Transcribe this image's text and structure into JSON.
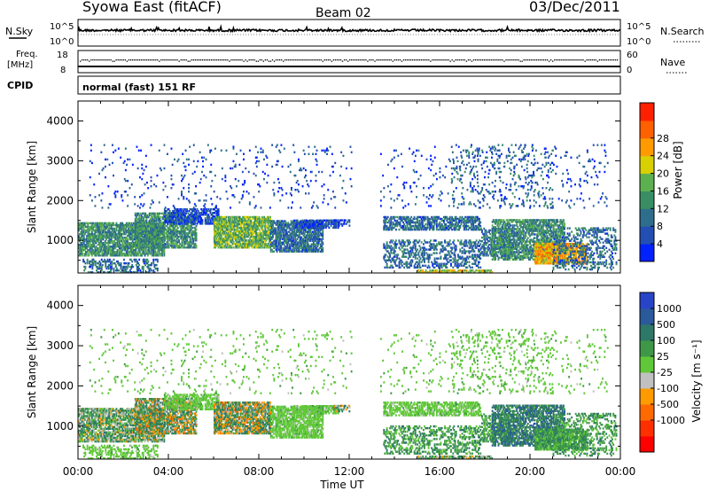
{
  "header": {
    "station": "Syowa East (fitACF)",
    "beam": "Beam 02",
    "date": "03/Dec/2011"
  },
  "noise_panel": {
    "left_label": "N.Sky",
    "right_label": "N.Search",
    "ticks_left": [
      "10^5",
      "10^0"
    ],
    "ticks_right": [
      "10^5",
      "10^0"
    ]
  },
  "freq_panel": {
    "left_label_line1": "Freq.",
    "left_label_line2": "[MHz]",
    "right_label": "Nave",
    "ticks_left": [
      "18",
      "8"
    ],
    "ticks_right": [
      "60",
      "0"
    ]
  },
  "cpid_panel": {
    "label": "CPID",
    "value": "normal (fast) 151 RF"
  },
  "chart_data": [
    {
      "type": "heatmap",
      "name": "power",
      "xlabel": "Time UT",
      "ylabel": "Slant Range [km]",
      "xlim": [
        0,
        24
      ],
      "xticks": [
        "00:00",
        "04:00",
        "08:00",
        "12:00",
        "16:00",
        "20:00",
        "00:00"
      ],
      "ylim": [
        180,
        4500
      ],
      "yticks": [
        1000,
        2000,
        3000,
        4000
      ],
      "colorbar": {
        "label": "Power [dB]",
        "ticks": [
          4,
          8,
          12,
          16,
          20,
          24,
          28
        ],
        "colors": [
          "#0022ff",
          "#234fb4",
          "#2e6e8c",
          "#3a8e64",
          "#5cb050",
          "#d8d000",
          "#ff9a00",
          "#ff6000",
          "#ff2000"
        ]
      }
    },
    {
      "type": "heatmap",
      "name": "velocity",
      "xlabel": "Time UT",
      "ylabel": "Slant Range [km]",
      "xlim": [
        0,
        24
      ],
      "xticks": [
        "00:00",
        "04:00",
        "08:00",
        "12:00",
        "16:00",
        "20:00",
        "00:00"
      ],
      "ylim": [
        180,
        4500
      ],
      "yticks": [
        1000,
        2000,
        3000,
        4000
      ],
      "colorbar": {
        "label": "Velocity [m s⁻¹]",
        "ticks": [
          "1000",
          "500",
          "100",
          "25",
          "-25",
          "-100",
          "-500",
          "-1000"
        ],
        "colors": [
          "#2845c8",
          "#2a5a9a",
          "#2e7868",
          "#3e9848",
          "#60c838",
          "#c0c0c0",
          "#ff9a00",
          "#ff6a00",
          "#ff3000",
          "#ff0000"
        ]
      }
    }
  ]
}
